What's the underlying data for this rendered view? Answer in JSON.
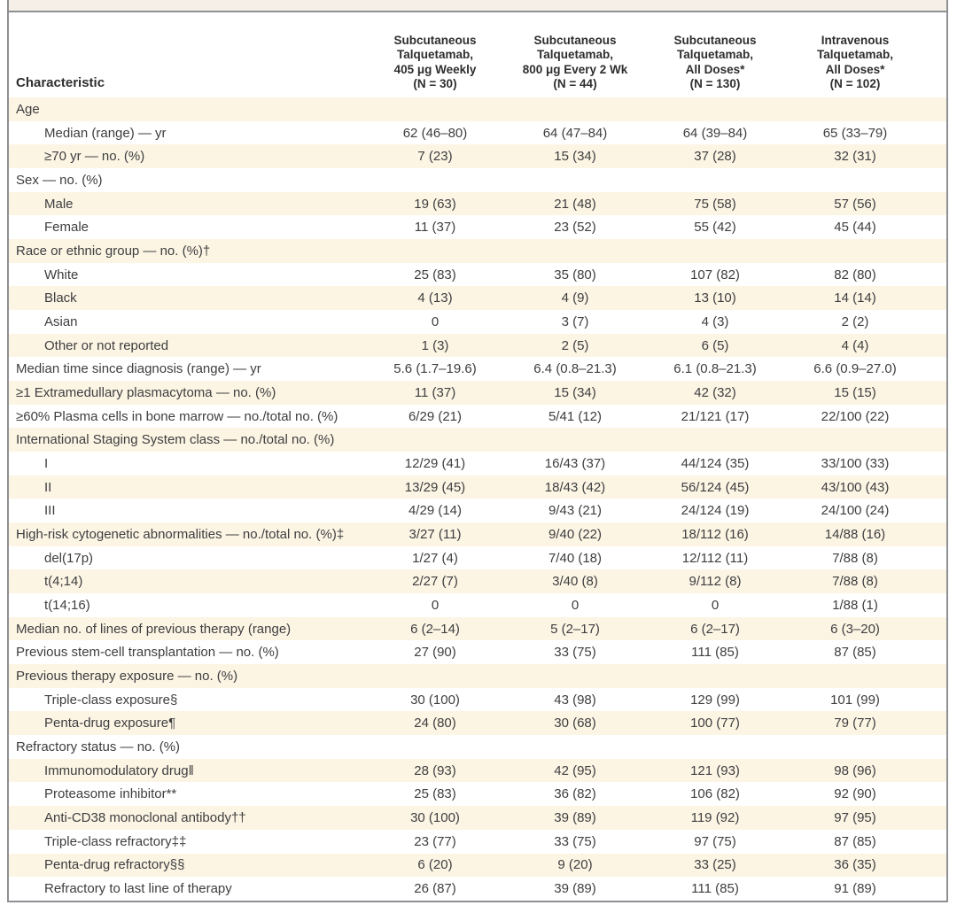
{
  "colors": {
    "row_shade": "#fcf5e4",
    "frame_border": "#8f9094",
    "top_strip": "#f5efe7"
  },
  "table": {
    "header": {
      "characteristic_label": "Characteristic",
      "columns": [
        "Subcutaneous\nTalquetamab,\n405 μg Weekly\n(N = 30)",
        "Subcutaneous\nTalquetamab,\n800 μg Every 2 Wk\n(N = 44)",
        "Subcutaneous\nTalquetamab,\nAll Doses*\n(N = 130)",
        "Intravenous\nTalquetamab,\nAll Doses*\n(N = 102)"
      ]
    },
    "rows": [
      {
        "label": "Age",
        "indent": 0,
        "values": [
          "",
          "",
          "",
          ""
        ]
      },
      {
        "label": "Median (range) — yr",
        "indent": 1,
        "values": [
          "62 (46–80)",
          "64 (47–84)",
          "64 (39–84)",
          "65 (33–79)"
        ]
      },
      {
        "label": "≥70 yr — no. (%)",
        "indent": 1,
        "values": [
          "7 (23)",
          "15 (34)",
          "37 (28)",
          "32 (31)"
        ]
      },
      {
        "label": "Sex — no. (%)",
        "indent": 0,
        "values": [
          "",
          "",
          "",
          ""
        ]
      },
      {
        "label": "Male",
        "indent": 1,
        "values": [
          "19 (63)",
          "21 (48)",
          "75 (58)",
          "57 (56)"
        ]
      },
      {
        "label": "Female",
        "indent": 1,
        "values": [
          "11 (37)",
          "23 (52)",
          "55 (42)",
          "45 (44)"
        ]
      },
      {
        "label": "Race or ethnic group — no. (%)†",
        "indent": 0,
        "values": [
          "",
          "",
          "",
          ""
        ]
      },
      {
        "label": "White",
        "indent": 1,
        "values": [
          "25 (83)",
          "35 (80)",
          "107 (82)",
          "82 (80)"
        ]
      },
      {
        "label": "Black",
        "indent": 1,
        "values": [
          "4 (13)",
          "4 (9)",
          "13 (10)",
          "14 (14)"
        ]
      },
      {
        "label": "Asian",
        "indent": 1,
        "values": [
          "0",
          "3 (7)",
          "4 (3)",
          "2 (2)"
        ]
      },
      {
        "label": "Other or not reported",
        "indent": 1,
        "values": [
          "1 (3)",
          "2 (5)",
          "6 (5)",
          "4 (4)"
        ]
      },
      {
        "label": "Median time since diagnosis (range) — yr",
        "indent": 0,
        "values": [
          "5.6 (1.7–19.6)",
          "6.4 (0.8–21.3)",
          "6.1 (0.8–21.3)",
          "6.6 (0.9–27.0)"
        ]
      },
      {
        "label": "≥1 Extramedullary plasmacytoma — no. (%)",
        "indent": 0,
        "values": [
          "11 (37)",
          "15 (34)",
          "42 (32)",
          "15 (15)"
        ]
      },
      {
        "label": "≥60% Plasma cells in bone marrow — no./total no. (%)",
        "indent": 0,
        "values": [
          "6/29 (21)",
          "5/41 (12)",
          "21/121 (17)",
          "22/100 (22)"
        ]
      },
      {
        "label": "International Staging System class — no./total no. (%)",
        "indent": 0,
        "values": [
          "",
          "",
          "",
          ""
        ]
      },
      {
        "label": "I",
        "indent": 1,
        "values": [
          "12/29 (41)",
          "16/43 (37)",
          "44/124 (35)",
          "33/100 (33)"
        ]
      },
      {
        "label": "II",
        "indent": 1,
        "values": [
          "13/29 (45)",
          "18/43 (42)",
          "56/124 (45)",
          "43/100 (43)"
        ]
      },
      {
        "label": "III",
        "indent": 1,
        "values": [
          "4/29 (14)",
          "9/43 (21)",
          "24/124 (19)",
          "24/100 (24)"
        ]
      },
      {
        "label": "High-risk cytogenetic abnormalities — no./total no. (%)‡",
        "indent": 0,
        "values": [
          "3/27 (11)",
          "9/40 (22)",
          "18/112 (16)",
          "14/88 (16)"
        ]
      },
      {
        "label": "del(17p)",
        "indent": 1,
        "values": [
          "1/27 (4)",
          "7/40 (18)",
          "12/112 (11)",
          "7/88 (8)"
        ]
      },
      {
        "label": "t(4;14)",
        "indent": 1,
        "values": [
          "2/27 (7)",
          "3/40 (8)",
          "9/112 (8)",
          "7/88 (8)"
        ]
      },
      {
        "label": "t(14;16)",
        "indent": 1,
        "values": [
          "0",
          "0",
          "0",
          "1/88 (1)"
        ]
      },
      {
        "label": "Median no. of lines of previous therapy (range)",
        "indent": 0,
        "values": [
          "6 (2–14)",
          "5 (2–17)",
          "6 (2–17)",
          "6 (3–20)"
        ]
      },
      {
        "label": "Previous stem-cell transplantation — no. (%)",
        "indent": 0,
        "values": [
          "27 (90)",
          "33 (75)",
          "111 (85)",
          "87 (85)"
        ]
      },
      {
        "label": "Previous therapy exposure — no. (%)",
        "indent": 0,
        "values": [
          "",
          "",
          "",
          ""
        ]
      },
      {
        "label": "Triple-class exposure§",
        "indent": 1,
        "values": [
          "30 (100)",
          "43 (98)",
          "129 (99)",
          "101 (99)"
        ]
      },
      {
        "label": "Penta-drug exposure¶",
        "indent": 1,
        "values": [
          "24 (80)",
          "30 (68)",
          "100 (77)",
          "79 (77)"
        ]
      },
      {
        "label": "Refractory status — no. (%)",
        "indent": 0,
        "values": [
          "",
          "",
          "",
          ""
        ]
      },
      {
        "label": "Immunomodulatory drug‖",
        "indent": 1,
        "values": [
          "28 (93)",
          "42 (95)",
          "121 (93)",
          "98 (96)"
        ]
      },
      {
        "label": "Proteasome inhibitor**",
        "indent": 1,
        "values": [
          "25 (83)",
          "36 (82)",
          "106 (82)",
          "92 (90)"
        ]
      },
      {
        "label": "Anti-CD38 monoclonal antibody††",
        "indent": 1,
        "values": [
          "30 (100)",
          "39 (89)",
          "119 (92)",
          "97 (95)"
        ]
      },
      {
        "label": "Triple-class refractory‡‡",
        "indent": 1,
        "values": [
          "23 (77)",
          "33 (75)",
          "97 (75)",
          "87 (85)"
        ]
      },
      {
        "label": "Penta-drug refractory§§",
        "indent": 1,
        "values": [
          "6 (20)",
          "9 (20)",
          "33 (25)",
          "36 (35)"
        ]
      },
      {
        "label": "Refractory to last line of therapy",
        "indent": 1,
        "values": [
          "26 (87)",
          "39 (89)",
          "111 (85)",
          "91 (89)"
        ]
      }
    ]
  }
}
